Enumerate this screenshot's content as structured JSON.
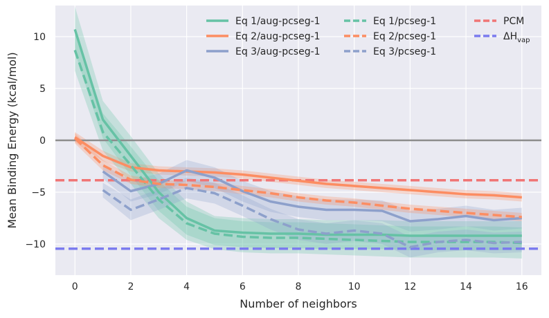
{
  "chart_data": {
    "type": "line",
    "title": "",
    "xlabel": "Number of neighbors",
    "ylabel": "Mean Binding Energy (kcal/mol)",
    "xlim": [
      -0.7,
      16.7
    ],
    "ylim": [
      -13,
      13
    ],
    "xticks": [
      0,
      2,
      4,
      6,
      8,
      10,
      12,
      14,
      16
    ],
    "yticks": [
      -10,
      -5,
      0,
      5,
      10
    ],
    "x": [
      0,
      1,
      2,
      3,
      4,
      5,
      6,
      7,
      8,
      9,
      10,
      11,
      12,
      13,
      14,
      15,
      16
    ],
    "zero_line": 0,
    "series": [
      {
        "name": "Eq 1/aug-pcseg-1",
        "color": "#66c2a5",
        "style": "solid",
        "values": [
          10.7,
          2.0,
          -1.5,
          -5.0,
          -7.5,
          -8.7,
          -8.9,
          -9.0,
          -9.0,
          -9.1,
          -9.1,
          -9.1,
          -9.2,
          -9.2,
          -9.2,
          -9.2,
          -9.2
        ],
        "band": [
          2.2,
          1.8,
          1.9,
          1.8,
          1.6,
          1.4,
          1.4,
          1.4,
          1.4,
          1.4,
          1.4,
          1.4,
          1.4,
          1.4,
          1.4,
          1.4,
          1.4
        ]
      },
      {
        "name": "Eq 2/aug-pcseg-1",
        "color": "#fc8d62",
        "style": "solid",
        "values": [
          0.3,
          -1.5,
          -2.6,
          -2.9,
          -3.0,
          -3.1,
          -3.3,
          -3.6,
          -3.9,
          -4.2,
          -4.4,
          -4.6,
          -4.8,
          -5.0,
          -5.2,
          -5.3,
          -5.5
        ],
        "band": [
          0.5,
          0.5,
          0.4,
          0.4,
          0.4,
          0.4,
          0.4,
          0.4,
          0.4,
          0.4,
          0.4,
          0.4,
          0.4,
          0.4,
          0.4,
          0.4,
          0.4
        ]
      },
      {
        "name": "Eq 3/aug-pcseg-1",
        "color": "#8da0cb",
        "style": "solid",
        "values": [
          null,
          -3.0,
          -4.9,
          -4.2,
          -2.9,
          -3.6,
          -4.9,
          -5.9,
          -6.4,
          -6.7,
          -6.7,
          -6.8,
          -7.8,
          -7.6,
          -7.3,
          -7.7,
          -7.5
        ],
        "band": [
          null,
          0.7,
          1.0,
          1.0,
          1.0,
          1.0,
          1.0,
          1.0,
          1.0,
          1.0,
          1.0,
          1.0,
          1.0,
          1.0,
          1.0,
          1.0,
          1.0
        ]
      },
      {
        "name": "Eq 1/pcseg-1",
        "color": "#66c2a5",
        "style": "dashed",
        "values": [
          8.7,
          0.8,
          -2.4,
          -5.7,
          -8.0,
          -9.0,
          -9.3,
          -9.4,
          -9.4,
          -9.5,
          -9.6,
          -9.7,
          -9.8,
          -9.8,
          -9.8,
          -9.8,
          -9.9
        ],
        "band": [
          2.0,
          1.8,
          1.8,
          1.8,
          1.6,
          1.5,
          1.5,
          1.5,
          1.5,
          1.5,
          1.5,
          1.5,
          1.5,
          1.5,
          1.5,
          1.5,
          1.5
        ]
      },
      {
        "name": "Eq 2/pcseg-1",
        "color": "#fc8d62",
        "style": "dashed",
        "values": [
          0.2,
          -2.4,
          -3.8,
          -4.2,
          -4.3,
          -4.5,
          -4.8,
          -5.1,
          -5.5,
          -5.8,
          -6.0,
          -6.3,
          -6.6,
          -6.8,
          -7.0,
          -7.2,
          -7.4
        ],
        "band": [
          0.5,
          0.5,
          0.4,
          0.4,
          0.4,
          0.4,
          0.4,
          0.4,
          0.4,
          0.4,
          0.4,
          0.4,
          0.4,
          0.4,
          0.4,
          0.4,
          0.4
        ]
      },
      {
        "name": "Eq 3/pcseg-1",
        "color": "#8da0cb",
        "style": "dashed",
        "values": [
          null,
          -4.8,
          -6.7,
          -5.7,
          -4.6,
          -5.1,
          -6.3,
          -7.6,
          -8.6,
          -9.0,
          -8.7,
          -9.0,
          -10.3,
          -9.8,
          -9.6,
          -9.9,
          -9.8
        ],
        "band": [
          null,
          0.7,
          1.0,
          1.0,
          1.0,
          1.0,
          1.0,
          1.0,
          1.0,
          1.0,
          1.0,
          1.0,
          1.0,
          1.0,
          1.0,
          1.0,
          1.0
        ]
      }
    ],
    "hlines": [
      {
        "name": "PCM",
        "value": -3.85,
        "color": "#f07575"
      },
      {
        "name": "ΔH",
        "subscript": "vap",
        "value": -10.45,
        "color": "#7b7bef"
      }
    ],
    "legend": {
      "position": "top-right",
      "columns": 3
    }
  }
}
